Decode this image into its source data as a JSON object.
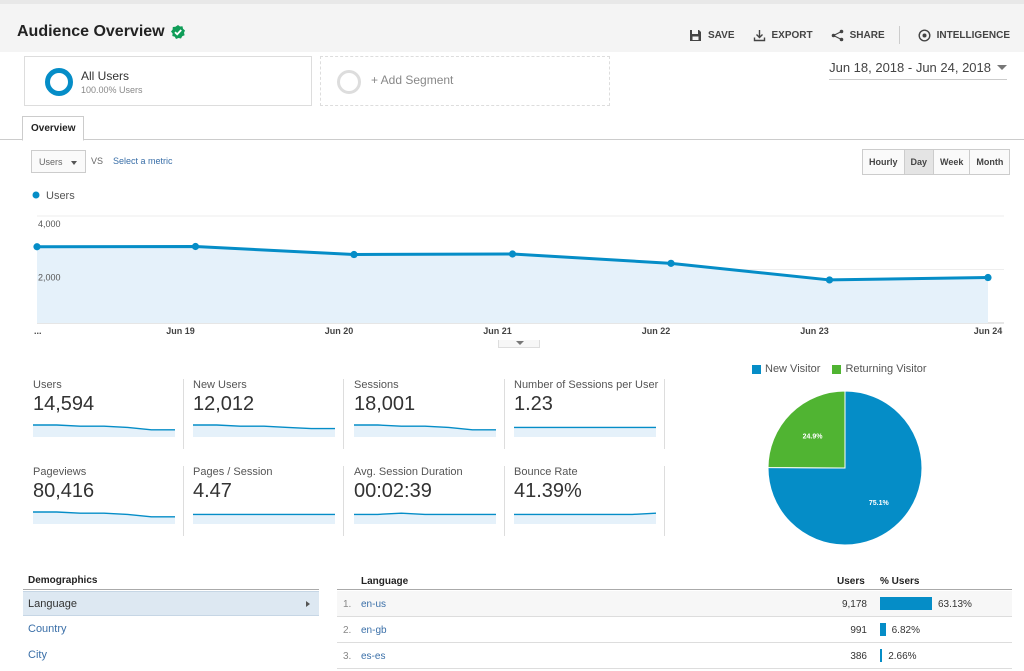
{
  "header": {
    "title": "Audience Overview",
    "actions": {
      "save": "SAVE",
      "export": "EXPORT",
      "share": "SHARE",
      "intelligence": "INTELLIGENCE"
    }
  },
  "segments": [
    {
      "name": "All Users",
      "sub": "100.00% Users"
    },
    {
      "name": "+ Add Segment"
    }
  ],
  "date_range": "Jun 18, 2018 - Jun 24, 2018",
  "tab": "Overview",
  "metric_selector": {
    "value": "Users",
    "vs": "VS",
    "select_link": "Select a metric"
  },
  "granularity": [
    "Hourly",
    "Day",
    "Week",
    "Month"
  ],
  "granularity_active": "Day",
  "colors": {
    "primary": "#058dc7",
    "secondary": "#50b432",
    "area": "#e5f1fa"
  },
  "chart_data": {
    "type": "line",
    "series": [
      {
        "name": "Users",
        "values": [
          2850,
          2860,
          2560,
          2580,
          2230,
          1610,
          1700
        ]
      }
    ],
    "x": [
      "Jun 18",
      "Jun 19",
      "Jun 20",
      "Jun 21",
      "Jun 22",
      "Jun 23",
      "Jun 24"
    ],
    "x_tick_labels": [
      "...",
      "Jun 19",
      "Jun 20",
      "Jun 21",
      "Jun 22",
      "Jun 23",
      "Jun 24"
    ],
    "y_ticks": [
      "4,000",
      "2,000"
    ],
    "ylim": [
      0,
      4000
    ]
  },
  "metrics": [
    {
      "label": "Users",
      "value": "14,594",
      "spark": [
        10,
        10,
        9,
        9,
        8,
        6,
        6
      ]
    },
    {
      "label": "New Users",
      "value": "12,012",
      "spark": [
        10,
        10,
        9,
        9,
        8,
        7,
        7
      ]
    },
    {
      "label": "Sessions",
      "value": "18,001",
      "spark": [
        10,
        10,
        9,
        9,
        8,
        6,
        6
      ]
    },
    {
      "label": "Number of Sessions per User",
      "value": "1.23",
      "spark": [
        8,
        8,
        8,
        8,
        8,
        8,
        8
      ]
    },
    {
      "label": "Pageviews",
      "value": "80,416",
      "spark": [
        10,
        10,
        9,
        9,
        8,
        6,
        6
      ]
    },
    {
      "label": "Pages / Session",
      "value": "4.47",
      "spark": [
        8,
        8,
        8,
        8,
        8,
        8,
        8
      ]
    },
    {
      "label": "Avg. Session Duration",
      "value": "00:02:39",
      "spark": [
        8,
        8,
        9,
        8,
        8,
        8,
        8
      ]
    },
    {
      "label": "Bounce Rate",
      "value": "41.39%",
      "spark": [
        8,
        8,
        8,
        8,
        8,
        8,
        9
      ]
    }
  ],
  "pie": {
    "legend": [
      "New Visitor",
      "Returning Visitor"
    ],
    "values": [
      75.1,
      24.9
    ],
    "labels": [
      "75.1%",
      "24.9%"
    ]
  },
  "demographics": {
    "title": "Demographics",
    "items": [
      "Language",
      "Country",
      "City"
    ],
    "selected": "Language"
  },
  "table": {
    "columns": [
      "Language",
      "Users",
      "% Users"
    ],
    "rows": [
      {
        "idx": "1.",
        "lang": "en-us",
        "users": "9,178",
        "pct": "63.13%",
        "pct_value": 63.13
      },
      {
        "idx": "2.",
        "lang": "en-gb",
        "users": "991",
        "pct": "6.82%",
        "pct_value": 6.82
      },
      {
        "idx": "3.",
        "lang": "es-es",
        "users": "386",
        "pct": "2.66%",
        "pct_value": 2.66
      }
    ]
  }
}
